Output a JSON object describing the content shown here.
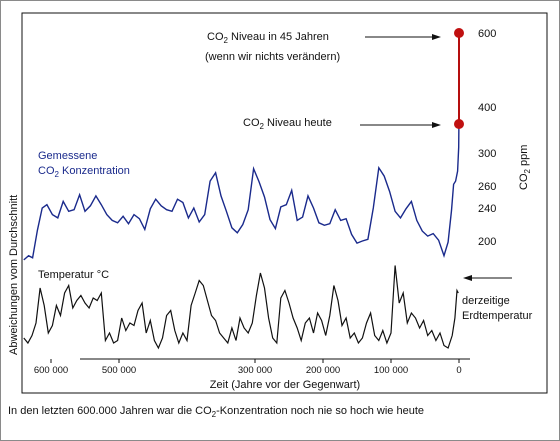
{
  "chart_data": {
    "type": "line",
    "x_axis": {
      "label": "Zeit (Jahre vor der Gegenwart)",
      "ticks": [
        600000,
        500000,
        300000,
        200000,
        100000,
        0
      ],
      "tick_labels": [
        "600 000",
        "500 000",
        "300 000",
        "200 000",
        "100 000",
        "0"
      ],
      "xlim": [
        640000,
        -5000
      ]
    },
    "y_axis_left": {
      "label": "Abweichungen vom Durchschnitt"
    },
    "y_axis_right": {
      "label_prefix": "CO",
      "label_sub": "2",
      "label_suffix": " ppm",
      "ticks": [
        600,
        400,
        300,
        260,
        240,
        200
      ],
      "tick_labels": [
        "600",
        "400",
        "300",
        "260",
        "240",
        "200"
      ]
    },
    "series": [
      {
        "name": "Gemessene CO2 Konzentration",
        "label_line1": "Gemessene",
        "label_line2_prefix": "CO",
        "label_line2_sub": "2",
        "label_line2_suffix": " Konzentration",
        "color": "#1a2a8c",
        "x": [
          640000,
          633000,
          627000,
          620000,
          613000,
          606000,
          598000,
          590000,
          582000,
          574000,
          566000,
          558000,
          550000,
          542000,
          534000,
          526000,
          518000,
          510000,
          502000,
          494000,
          486000,
          478000,
          470000,
          462000,
          454000,
          446000,
          438000,
          430000,
          422000,
          414000,
          406000,
          398000,
          390000,
          382000,
          374000,
          366000,
          358000,
          350000,
          342000,
          334000,
          326000,
          318000,
          310000,
          302000,
          294000,
          286000,
          278000,
          270000,
          262000,
          254000,
          246000,
          238000,
          230000,
          222000,
          214000,
          206000,
          198000,
          190000,
          182000,
          174000,
          166000,
          158000,
          150000,
          142000,
          134000,
          126000,
          118000,
          110000,
          102000,
          94000,
          86000,
          78000,
          70000,
          62000,
          54000,
          46000,
          38000,
          30000,
          22000,
          16000,
          11000,
          8000,
          5000,
          2000,
          500,
          0
        ],
        "y": [
          182,
          186,
          184,
          213,
          240,
          243,
          232,
          228,
          246,
          236,
          238,
          252,
          236,
          242,
          251,
          243,
          232,
          225,
          222,
          230,
          221,
          232,
          227,
          214,
          239,
          248,
          242,
          238,
          236,
          248,
          245,
          228,
          240,
          223,
          232,
          266,
          276,
          251,
          236,
          216,
          210,
          220,
          238,
          281,
          265,
          250,
          226,
          215,
          241,
          243,
          256,
          225,
          229,
          251,
          240,
          222,
          219,
          221,
          238,
          225,
          227,
          208,
          198,
          200,
          202,
          240,
          282,
          272,
          255,
          236,
          228,
          239,
          246,
          225,
          212,
          206,
          209,
          201,
          186,
          199,
          237,
          262,
          266,
          278,
          310,
          380
        ]
      },
      {
        "name": "Temperatur °C",
        "color": "#111111",
        "x": [
          640000,
          634000,
          628000,
          622000,
          616000,
          610000,
          604000,
          598000,
          592000,
          586000,
          580000,
          574000,
          568000,
          562000,
          556000,
          550000,
          544000,
          538000,
          532000,
          526000,
          520000,
          514000,
          508000,
          502000,
          496000,
          490000,
          484000,
          478000,
          472000,
          466000,
          460000,
          454000,
          448000,
          442000,
          436000,
          430000,
          424000,
          418000,
          412000,
          406000,
          400000,
          394000,
          388000,
          382000,
          376000,
          370000,
          364000,
          358000,
          352000,
          346000,
          340000,
          334000,
          328000,
          322000,
          316000,
          310000,
          304000,
          298000,
          292000,
          286000,
          280000,
          274000,
          268000,
          262000,
          256000,
          250000,
          244000,
          238000,
          232000,
          226000,
          220000,
          214000,
          208000,
          202000,
          196000,
          190000,
          184000,
          178000,
          172000,
          166000,
          160000,
          154000,
          148000,
          142000,
          136000,
          130000,
          124000,
          118000,
          112000,
          106000,
          100000,
          94000,
          88000,
          82000,
          76000,
          70000,
          64000,
          58000,
          52000,
          46000,
          40000,
          34000,
          28000,
          22000,
          16000,
          10000,
          6000,
          3000,
          1000
        ],
        "y": [
          -1.2,
          -1.4,
          -1.1,
          -0.6,
          0.8,
          0.1,
          -1.0,
          -0.7,
          0.1,
          -0.3,
          0.6,
          0.9,
          0.0,
          0.3,
          0.5,
          0.2,
          0.0,
          0.4,
          0.3,
          0.6,
          -1.3,
          -1.0,
          -1.4,
          -1.3,
          -0.4,
          -0.9,
          -0.6,
          -0.7,
          -0.1,
          0.2,
          -1.0,
          -0.5,
          -1.3,
          -1.6,
          -1.2,
          -0.3,
          -0.1,
          -0.9,
          -1.4,
          -1.0,
          -1.3,
          0.1,
          0.6,
          1.1,
          0.9,
          0.3,
          -0.3,
          -0.5,
          -1.0,
          -1.2,
          -1.4,
          -0.8,
          -1.3,
          -0.4,
          -0.8,
          -1.0,
          -0.6,
          0.5,
          1.4,
          0.8,
          -0.4,
          -1.2,
          -1.4,
          0.4,
          0.7,
          0.2,
          -0.4,
          -0.8,
          -1.3,
          -0.6,
          -0.4,
          -1.0,
          -0.2,
          -0.5,
          -1.1,
          -0.3,
          0.9,
          0.3,
          -0.7,
          -0.4,
          -1.2,
          -1.0,
          -1.4,
          -1.2,
          -0.6,
          -0.2,
          -1.1,
          -1.3,
          -0.9,
          -1.4,
          -1.0,
          1.7,
          0.2,
          0.6,
          -0.6,
          -0.2,
          -0.4,
          -0.8,
          -0.5,
          -1.1,
          -0.9,
          -1.3,
          -1.0,
          -1.5,
          -1.6,
          -1.1,
          -0.4,
          0.7,
          0.6
        ]
      },
      {
        "name": "CO2 Projektion",
        "color": "#b50e0e",
        "x": [
          0,
          0
        ],
        "y": [
          350,
          600
        ]
      }
    ],
    "markers": [
      {
        "x": 0,
        "y": 350,
        "label_prefix": "CO",
        "label_sub": "2",
        "label_suffix": " Niveau heute"
      },
      {
        "x": 0,
        "y": 600,
        "label_prefix": "CO",
        "label_sub": "2",
        "label_suffix": " Niveau in 45 Jahren",
        "label_line2": "(wenn wir nichts verändern)"
      }
    ],
    "annotations": {
      "temp_label_line1": "derzeitige",
      "temp_label_line2": "Erdtemperatur"
    },
    "grid": false,
    "legend": "inline"
  },
  "caption": {
    "prefix": "In den letzten 600.000 Jahren war die CO",
    "sub": "2",
    "suffix": "-Konzentration noch nie so hoch wie heute"
  }
}
